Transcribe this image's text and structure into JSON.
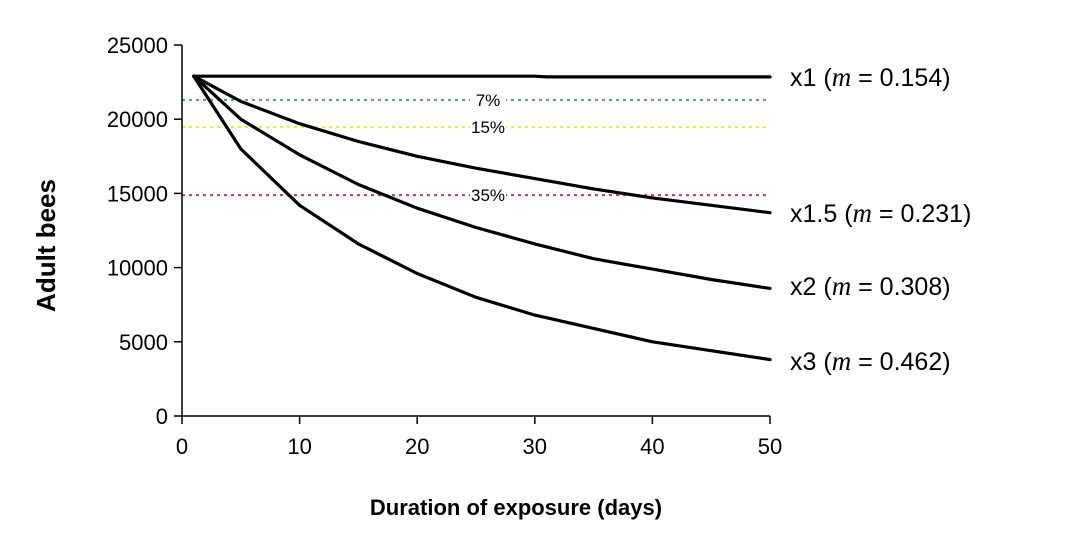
{
  "chart_data": {
    "type": "line",
    "title": "",
    "xlabel": "Duration of exposure (days)",
    "ylabel": "Adult bees",
    "xlim": [
      0,
      50
    ],
    "ylim": [
      0,
      25000
    ],
    "xticks": [
      0,
      10,
      20,
      30,
      40,
      50
    ],
    "yticks": [
      0,
      5000,
      10000,
      15000,
      20000,
      25000
    ],
    "grid": false,
    "legend": "none",
    "series": [
      {
        "label_prefix": "x1 (",
        "label_italic": "m",
        "label_suffix": " = 0.154)",
        "color": "#000000",
        "x": [
          1,
          5,
          10,
          15,
          20,
          25,
          30,
          31,
          35,
          40,
          45,
          50
        ],
        "y": [
          22900,
          22900,
          22900,
          22900,
          22900,
          22900,
          22900,
          22850,
          22850,
          22850,
          22850,
          22850
        ]
      },
      {
        "label_prefix": "x1.5 (",
        "label_italic": "m",
        "label_suffix": " = 0.231)",
        "color": "#000000",
        "x": [
          1,
          5,
          10,
          15,
          20,
          25,
          30,
          35,
          40,
          45,
          50
        ],
        "y": [
          22900,
          21200,
          19700,
          18500,
          17500,
          16700,
          16000,
          15300,
          14700,
          14200,
          13700
        ]
      },
      {
        "label_prefix": "x2 (",
        "label_italic": "m",
        "label_suffix": " = 0.308)",
        "color": "#000000",
        "x": [
          1,
          5,
          10,
          15,
          20,
          25,
          30,
          35,
          40,
          45,
          50
        ],
        "y": [
          22900,
          20000,
          17600,
          15600,
          14000,
          12700,
          11600,
          10600,
          9900,
          9200,
          8600
        ]
      },
      {
        "label_prefix": "x3 (",
        "label_italic": "m",
        "label_suffix": " = 0.462)",
        "color": "#000000",
        "x": [
          1,
          5,
          10,
          15,
          20,
          25,
          30,
          35,
          40,
          45,
          50
        ],
        "y": [
          22900,
          18000,
          14200,
          11600,
          9600,
          8000,
          6800,
          5900,
          5000,
          4400,
          3800
        ]
      }
    ],
    "reference_lines": [
      {
        "label": "7%",
        "y": 21300,
        "color": "#5a8fb8"
      },
      {
        "label": "15%",
        "y": 19470,
        "color": "#e8e84a"
      },
      {
        "label": "35%",
        "y": 14885,
        "color": "#b0405a"
      }
    ]
  }
}
